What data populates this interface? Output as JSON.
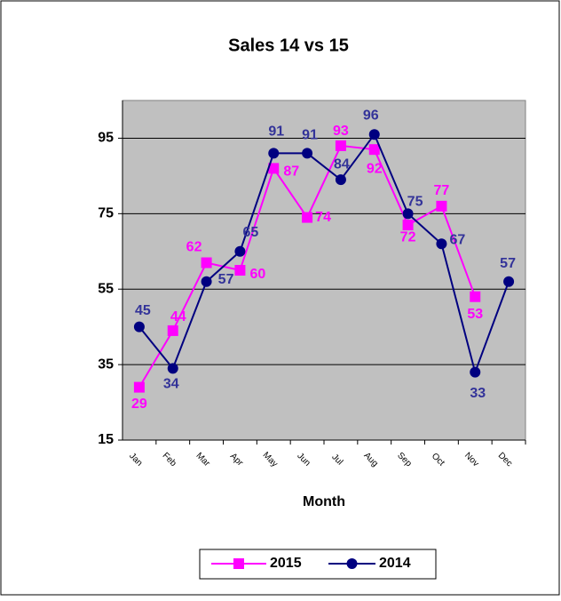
{
  "chart_data": {
    "type": "line",
    "title": "Sales 14 vs 15",
    "x_label": "Month",
    "categories": [
      "Jan",
      "Feb",
      "Mar",
      "Apr",
      "May",
      "Jun",
      "Jul",
      "Aug",
      "Sep",
      "Oct",
      "Nov",
      "Dec"
    ],
    "series": [
      {
        "name": "2015",
        "color": "#ff00ff",
        "marker": "square",
        "values": [
          29,
          44,
          62,
          60,
          87,
          74,
          93,
          92,
          72,
          77,
          53,
          null
        ]
      },
      {
        "name": "2014",
        "color": "#000080",
        "marker": "circle",
        "values": [
          45,
          34,
          57,
          65,
          91,
          91,
          84,
          96,
          75,
          67,
          33,
          57
        ]
      }
    ],
    "ylim": [
      15,
      105
    ],
    "yticks": [
      15,
      35,
      55,
      75,
      95
    ],
    "grid": true,
    "legend": "bottom"
  }
}
